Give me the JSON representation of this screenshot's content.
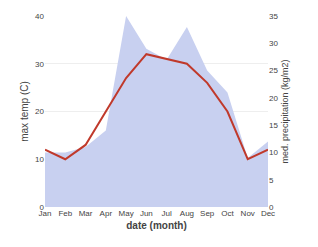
{
  "chart_data": {
    "type": "line",
    "x_label": "date (month)",
    "y_label": "max temp (C)",
    "y2_label": "med. precipitation (kg/m2)",
    "categories": [
      "Jan",
      "Feb",
      "Mar",
      "Apr",
      "May",
      "Jun",
      "Jul",
      "Aug",
      "Sep",
      "Oct",
      "Nov",
      "Dec"
    ],
    "series": [
      {
        "type": "area",
        "axis": "y2",
        "color": "#c8d0f0",
        "values": [
          10,
          10,
          11,
          14,
          35,
          29,
          27,
          33,
          25,
          21,
          9,
          12
        ]
      },
      {
        "type": "line",
        "color": "#c0392b",
        "values": [
          12,
          10,
          13,
          20,
          27,
          32,
          31,
          30,
          26,
          20,
          10,
          12
        ]
      }
    ],
    "ylim": [
      0,
      40
    ],
    "yticks": [
      0,
      10,
      20,
      30,
      40
    ],
    "y2lim": [
      0,
      35
    ],
    "y2ticks": [
      0,
      5,
      10,
      15,
      20,
      25,
      30,
      35
    ],
    "grid": true
  }
}
